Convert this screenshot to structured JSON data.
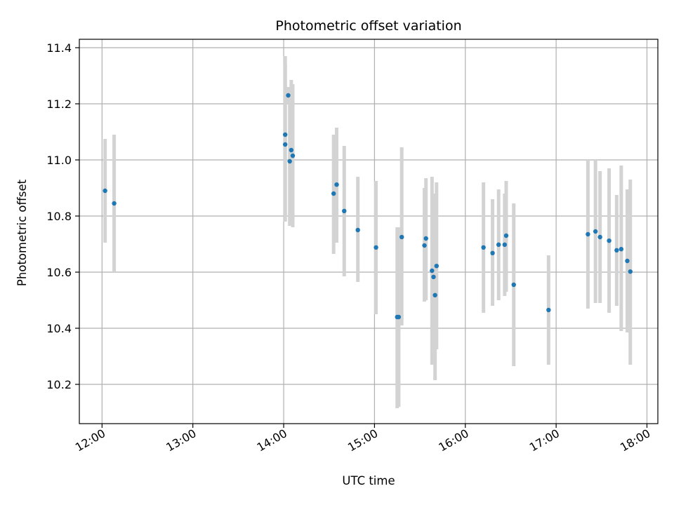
{
  "chart_data": {
    "type": "scatter",
    "title": "Photometric offset variation",
    "xlabel": "UTC time",
    "ylabel": "Photometric offset",
    "x_range_hours": [
      11.75,
      18.12
    ],
    "ylim": [
      10.06,
      11.43
    ],
    "x_ticks": [
      {
        "label": "12:00",
        "value": 12
      },
      {
        "label": "13:00",
        "value": 13
      },
      {
        "label": "14:00",
        "value": 14
      },
      {
        "label": "15:00",
        "value": 15
      },
      {
        "label": "16:00",
        "value": 16
      },
      {
        "label": "17:00",
        "value": 17
      },
      {
        "label": "18:00",
        "value": 18
      }
    ],
    "y_ticks": [
      {
        "label": "10.2",
        "value": 10.2
      },
      {
        "label": "10.4",
        "value": 10.4
      },
      {
        "label": "10.6",
        "value": 10.6
      },
      {
        "label": "10.8",
        "value": 10.8
      },
      {
        "label": "11.0",
        "value": 11.0
      },
      {
        "label": "11.2",
        "value": 11.2
      },
      {
        "label": "11.4",
        "value": 11.4
      }
    ],
    "grid": true,
    "colors": {
      "point": "#1f77b4",
      "errorbar": "#d3d3d3",
      "grid": "#b0b0b0"
    },
    "points": [
      {
        "t": "12:02",
        "y": 10.89,
        "low": 10.705,
        "high": 11.075
      },
      {
        "t": "12:08",
        "y": 10.845,
        "low": 10.6,
        "high": 11.09
      },
      {
        "t": "14:01",
        "y": 11.09,
        "low": 10.8,
        "high": 11.37
      },
      {
        "t": "14:01",
        "y": 11.055,
        "low": 10.78,
        "high": 11.34
      },
      {
        "t": "14:03",
        "y": 11.23,
        "low": 11.2,
        "high": 11.26
      },
      {
        "t": "14:04",
        "y": 10.995,
        "low": 10.765,
        "high": 11.23
      },
      {
        "t": "14:05",
        "y": 11.035,
        "low": 10.77,
        "high": 11.285
      },
      {
        "t": "14:06",
        "y": 11.015,
        "low": 10.76,
        "high": 11.27
      },
      {
        "t": "14:33",
        "y": 10.88,
        "low": 10.665,
        "high": 11.09
      },
      {
        "t": "14:35",
        "y": 10.912,
        "low": 10.705,
        "high": 11.115
      },
      {
        "t": "14:40",
        "y": 10.818,
        "low": 10.585,
        "high": 11.05
      },
      {
        "t": "14:49",
        "y": 10.75,
        "low": 10.565,
        "high": 10.94
      },
      {
        "t": "15:01",
        "y": 10.688,
        "low": 10.45,
        "high": 10.925
      },
      {
        "t": "15:15",
        "y": 10.44,
        "low": 10.115,
        "high": 10.76
      },
      {
        "t": "15:16",
        "y": 10.44,
        "low": 10.12,
        "high": 10.76
      },
      {
        "t": "15:18",
        "y": 10.725,
        "low": 10.41,
        "high": 11.045
      },
      {
        "t": "15:33",
        "y": 10.695,
        "low": 10.495,
        "high": 10.9
      },
      {
        "t": "15:34",
        "y": 10.72,
        "low": 10.5,
        "high": 10.935
      },
      {
        "t": "15:38",
        "y": 10.605,
        "low": 10.27,
        "high": 10.94
      },
      {
        "t": "15:39",
        "y": 10.583,
        "low": 10.285,
        "high": 10.88
      },
      {
        "t": "15:40",
        "y": 10.518,
        "low": 10.215,
        "high": 10.82
      },
      {
        "t": "15:41",
        "y": 10.622,
        "low": 10.325,
        "high": 10.92
      },
      {
        "t": "16:12",
        "y": 10.688,
        "low": 10.455,
        "high": 10.92
      },
      {
        "t": "16:18",
        "y": 10.668,
        "low": 10.48,
        "high": 10.86
      },
      {
        "t": "16:22",
        "y": 10.698,
        "low": 10.5,
        "high": 10.895
      },
      {
        "t": "16:26",
        "y": 10.698,
        "low": 10.515,
        "high": 10.88
      },
      {
        "t": "16:27",
        "y": 10.73,
        "low": 10.53,
        "high": 10.925
      },
      {
        "t": "16:32",
        "y": 10.555,
        "low": 10.265,
        "high": 10.845
      },
      {
        "t": "16:55",
        "y": 10.465,
        "low": 10.27,
        "high": 10.66
      },
      {
        "t": "17:21",
        "y": 10.735,
        "low": 10.47,
        "high": 11.0
      },
      {
        "t": "17:26",
        "y": 10.745,
        "low": 10.49,
        "high": 11.0
      },
      {
        "t": "17:29",
        "y": 10.725,
        "low": 10.49,
        "high": 10.96
      },
      {
        "t": "17:35",
        "y": 10.712,
        "low": 10.455,
        "high": 10.97
      },
      {
        "t": "17:40",
        "y": 10.678,
        "low": 10.48,
        "high": 10.875
      },
      {
        "t": "17:43",
        "y": 10.682,
        "low": 10.39,
        "high": 10.98
      },
      {
        "t": "17:47",
        "y": 10.64,
        "low": 10.385,
        "high": 10.895
      },
      {
        "t": "17:49",
        "y": 10.602,
        "low": 10.27,
        "high": 10.93
      }
    ]
  }
}
